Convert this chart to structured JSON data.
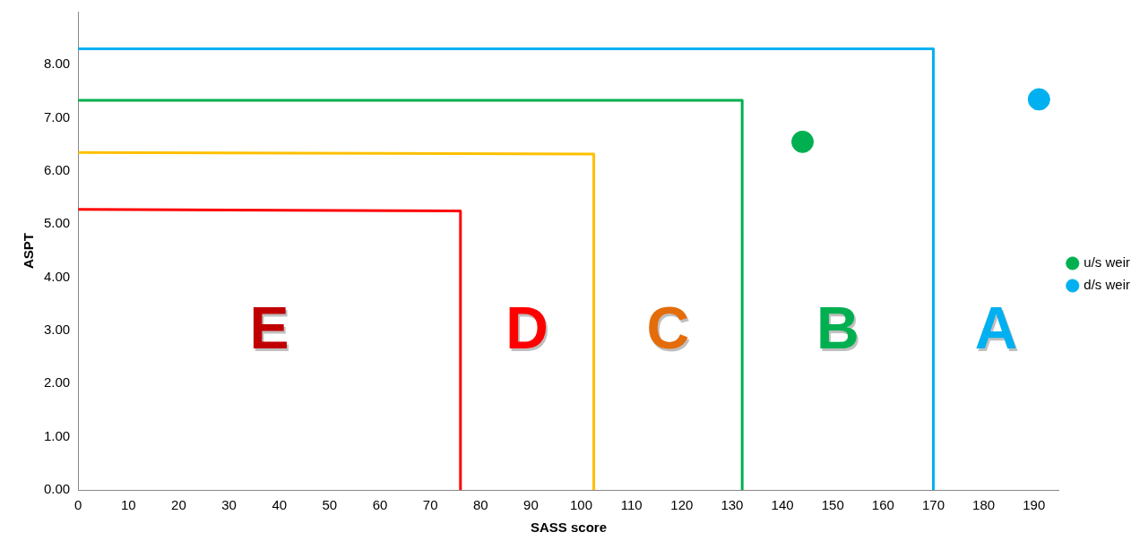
{
  "chart_data": {
    "type": "scatter",
    "xlabel": "SASS score",
    "ylabel": "ASPT",
    "xlim": [
      0,
      195
    ],
    "xticks": [
      0,
      10,
      20,
      30,
      40,
      50,
      60,
      70,
      80,
      90,
      100,
      110,
      120,
      130,
      140,
      150,
      160,
      170,
      180,
      190
    ],
    "ylim": [
      0,
      9
    ],
    "yticks": [
      {
        "value": 0,
        "label": "0.00"
      },
      {
        "value": 1,
        "label": "1.00"
      },
      {
        "value": 2,
        "label": "2.00"
      },
      {
        "value": 3,
        "label": "3.00"
      },
      {
        "value": 4,
        "label": "4.00"
      },
      {
        "value": 5,
        "label": "5.00"
      },
      {
        "value": 6,
        "label": "6.00"
      },
      {
        "value": 7,
        "label": "7.00"
      },
      {
        "value": 8,
        "label": "8.00"
      }
    ],
    "grid": false,
    "legend": "right",
    "marker": "circle",
    "series": [
      {
        "type": "line",
        "marker": "none",
        "color": "#ff0000",
        "x": [
          0,
          76,
          76
        ],
        "values": [
          5.28,
          5.25,
          0
        ]
      },
      {
        "type": "line",
        "marker": "none",
        "color": "#ffc000",
        "x": [
          0,
          102.5,
          102.5
        ],
        "values": [
          6.35,
          6.32,
          0
        ]
      },
      {
        "type": "line",
        "marker": "none",
        "color": "#00b050",
        "x": [
          0,
          132,
          132
        ],
        "values": [
          7.33,
          7.33,
          0
        ]
      },
      {
        "type": "line",
        "marker": "none",
        "color": "#00b0f0",
        "x": [
          0,
          170,
          170
        ],
        "values": [
          8.3,
          8.3,
          0
        ]
      },
      {
        "name": "u/s weir",
        "color": "#00b050",
        "x": [
          144
        ],
        "values": [
          6.55
        ]
      },
      {
        "name": "d/s weir",
        "color": "#00b0f0",
        "x": [
          191
        ],
        "values": [
          7.35
        ]
      }
    ],
    "annotations": [
      "E",
      "D",
      "C",
      "B",
      "A"
    ]
  }
}
